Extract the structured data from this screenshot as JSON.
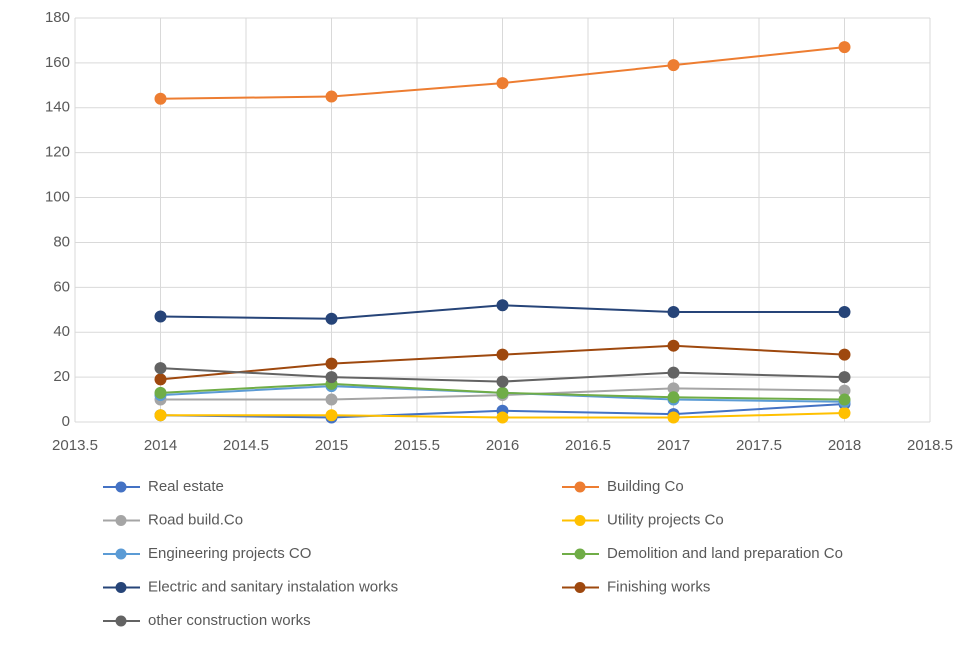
{
  "chart_data": {
    "type": "line",
    "x": [
      2014,
      2015,
      2016,
      2017,
      2018
    ],
    "xlim": [
      2013.5,
      2018.5
    ],
    "xticks": [
      2013.5,
      2014,
      2014.5,
      2015,
      2015.5,
      2016,
      2016.5,
      2017,
      2017.5,
      2018,
      2018.5
    ],
    "ylim": [
      0,
      180
    ],
    "yticks": [
      0,
      20,
      40,
      60,
      80,
      100,
      120,
      140,
      160,
      180
    ],
    "grid": true,
    "legend": "bottom",
    "series": [
      {
        "name": "Real estate",
        "color": "#4472c4",
        "values": [
          3,
          2,
          5,
          3.5,
          8
        ]
      },
      {
        "name": "Building Co",
        "color": "#ed7d31",
        "values": [
          144,
          145,
          151,
          159,
          167
        ]
      },
      {
        "name": "Road build.Co",
        "color": "#a5a5a5",
        "values": [
          10,
          10,
          12,
          15,
          14
        ]
      },
      {
        "name": "Utility projects Co",
        "color": "#ffc000",
        "values": [
          3,
          3,
          2,
          2,
          4
        ]
      },
      {
        "name": "Engineering projects CO",
        "color": "#5b9bd5",
        "values": [
          12,
          16,
          13,
          10,
          9
        ]
      },
      {
        "name": "Demolition and land preparation Co",
        "color": "#70ad47",
        "values": [
          13,
          17,
          13,
          11,
          10
        ]
      },
      {
        "name": "Electric and sanitary instalation works",
        "color": "#264478",
        "values": [
          47,
          46,
          52,
          49,
          49
        ]
      },
      {
        "name": "Finishing works",
        "color": "#9e480e",
        "values": [
          19,
          26,
          30,
          34,
          30
        ]
      },
      {
        "name": "other construction works",
        "color": "#636363",
        "values": [
          24,
          20,
          18,
          22,
          20
        ]
      }
    ]
  }
}
